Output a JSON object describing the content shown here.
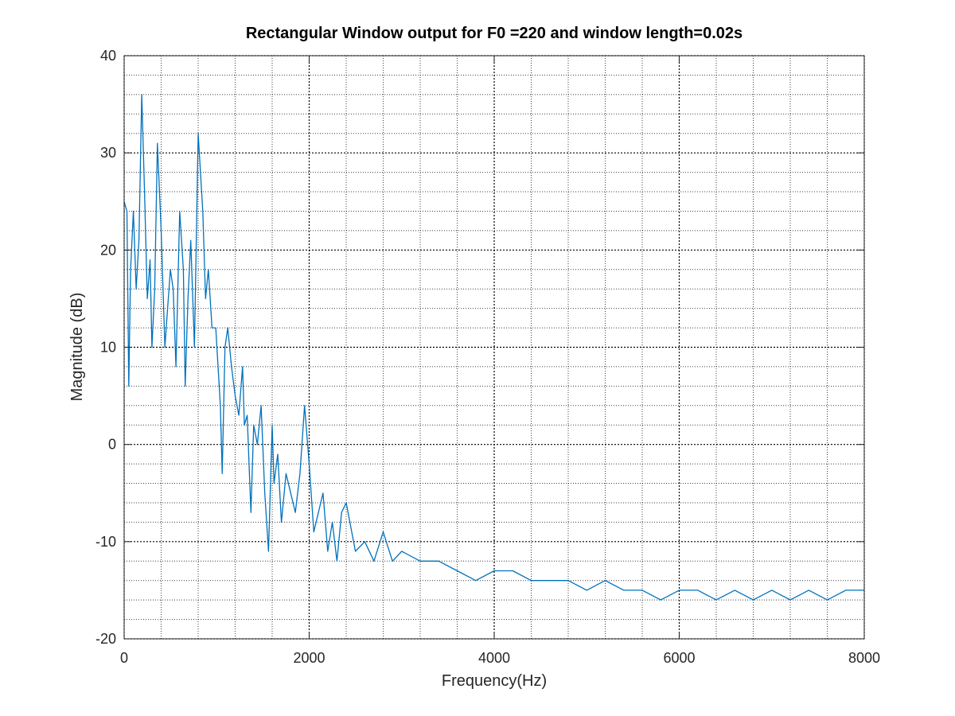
{
  "chart_data": {
    "type": "line",
    "title": "Rectangular Window output for F0 =220 and window length=0.02s",
    "xlabel": "Frequency(Hz)",
    "ylabel": "Magnitude (dB)",
    "xlim": [
      0,
      8000
    ],
    "ylim": [
      -20,
      40
    ],
    "xticks": [
      0,
      2000,
      4000,
      6000,
      8000
    ],
    "yticks": [
      -20,
      -10,
      0,
      10,
      20,
      30,
      40
    ],
    "xtick_labels": [
      "0",
      "2000",
      "4000",
      "6000",
      "8000"
    ],
    "ytick_labels": [
      "-20",
      "-10",
      "0",
      "10",
      "20",
      "30",
      "40"
    ],
    "grid": true,
    "minor_grid": true,
    "series_color": "#0072BD",
    "series": [
      {
        "x": [
          0,
          30,
          50,
          70,
          100,
          130,
          160,
          190,
          220,
          250,
          280,
          300,
          330,
          360,
          400,
          440,
          470,
          500,
          530,
          560,
          600,
          640,
          660,
          690,
          720,
          760,
          800,
          850,
          880,
          910,
          950,
          990,
          1040,
          1060,
          1090,
          1120,
          1160,
          1200,
          1240,
          1280,
          1300,
          1330,
          1370,
          1400,
          1440,
          1480,
          1520,
          1560,
          1600,
          1620,
          1660,
          1700,
          1750,
          1800,
          1850,
          1900,
          1950,
          2000,
          2050,
          2100,
          2150,
          2200,
          2250,
          2300,
          2350,
          2400,
          2500,
          2600,
          2700,
          2800,
          2900,
          3000,
          3200,
          3400,
          3600,
          3800,
          4000,
          4200,
          4400,
          4600,
          4800,
          5000,
          5200,
          5400,
          5600,
          5800,
          6000,
          6200,
          6400,
          6600,
          6800,
          7000,
          7200,
          7400,
          7600,
          7800,
          8000
        ],
        "y": [
          25,
          24,
          6,
          18,
          24,
          16,
          21,
          36,
          26,
          15,
          19,
          10,
          16,
          31,
          22,
          10,
          14,
          18,
          16,
          8,
          24,
          18,
          6,
          15,
          21,
          10,
          32,
          24,
          15,
          18,
          12,
          12,
          4,
          -3,
          10,
          12,
          8,
          5,
          3,
          8,
          2,
          3,
          -7,
          2,
          0,
          4,
          -5,
          -11,
          2,
          -4,
          -1,
          -8,
          -3,
          -5,
          -7,
          -3,
          4,
          -2,
          -9,
          -7,
          -5,
          -11,
          -8,
          -12,
          -7,
          -6,
          -11,
          -10,
          -12,
          -9,
          -12,
          -11,
          -12,
          -12,
          -13,
          -14,
          -13,
          -13,
          -14,
          -14,
          -14,
          -15,
          -14,
          -15,
          -15,
          -16,
          -15,
          -15,
          -16,
          -15,
          -16,
          -15,
          -16,
          -15,
          -16,
          -15,
          -15
        ]
      }
    ]
  }
}
